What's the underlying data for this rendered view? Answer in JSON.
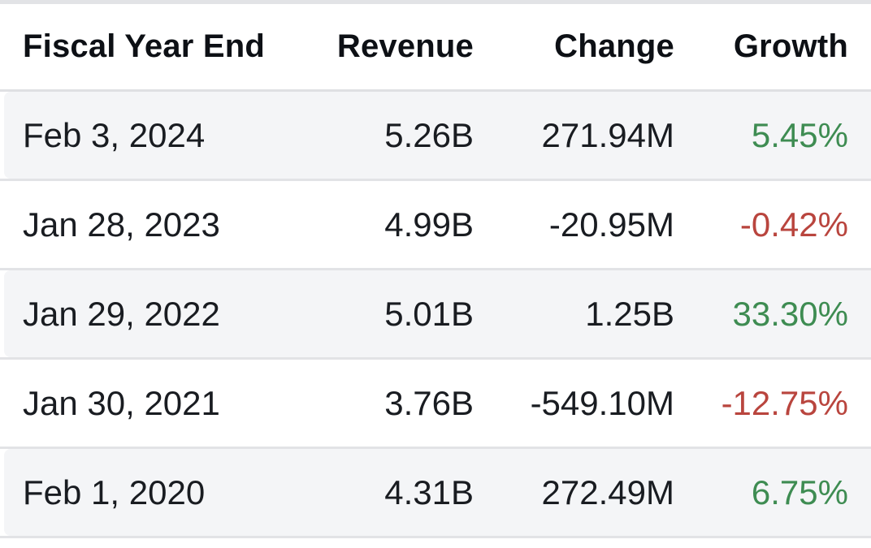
{
  "colors": {
    "positive": "#3e8c52",
    "negative": "#b9453e",
    "stripe": "#f4f5f7",
    "divider": "#e2e3e6",
    "header_text": "#0d1015",
    "body_text": "#191c21"
  },
  "table": {
    "columns": [
      "Fiscal Year End",
      "Revenue",
      "Change",
      "Growth"
    ],
    "rows": [
      {
        "fiscal_year_end": "Feb 3, 2024",
        "revenue": "5.26B",
        "change": "271.94M",
        "growth": "5.45%",
        "growth_direction": "positive"
      },
      {
        "fiscal_year_end": "Jan 28, 2023",
        "revenue": "4.99B",
        "change": "-20.95M",
        "growth": "-0.42%",
        "growth_direction": "negative"
      },
      {
        "fiscal_year_end": "Jan 29, 2022",
        "revenue": "5.01B",
        "change": "1.25B",
        "growth": "33.30%",
        "growth_direction": "positive"
      },
      {
        "fiscal_year_end": "Jan 30, 2021",
        "revenue": "3.76B",
        "change": "-549.10M",
        "growth": "-12.75%",
        "growth_direction": "negative"
      },
      {
        "fiscal_year_end": "Feb 1, 2020",
        "revenue": "4.31B",
        "change": "272.49M",
        "growth": "6.75%",
        "growth_direction": "positive"
      }
    ]
  }
}
